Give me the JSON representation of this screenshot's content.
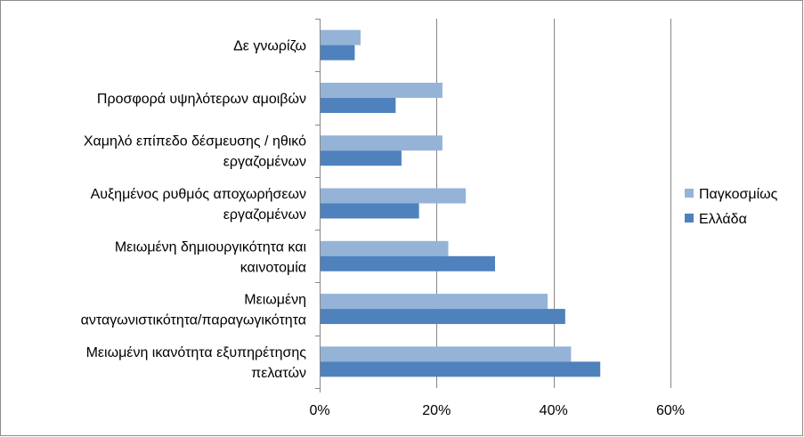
{
  "chart_data": {
    "type": "bar",
    "orientation": "horizontal",
    "categories": [
      [
        "Δε γνωρίζω"
      ],
      [
        "Προσφορά υψηλότερων αμοιβών"
      ],
      [
        "Χαμηλό επίπεδο δέσμευσης / ηθικό",
        "εργαζομένων"
      ],
      [
        "Αυξημένος ρυθμός αποχωρήσεων",
        "εργαζομένων"
      ],
      [
        "Μειωμένη δημιουργικότητα και",
        "καινοτομία"
      ],
      [
        "Μειωμένη",
        "ανταγωνιστικότητα/παραγωγικότητα"
      ],
      [
        "Μειωμένη ικανότητα εξυπηρέτησης",
        "πελατών"
      ]
    ],
    "series": [
      {
        "name": "Παγκοσμίως",
        "color": "#95b3d7",
        "values": [
          7,
          21,
          21,
          25,
          22,
          39,
          43
        ]
      },
      {
        "name": "Ελλάδα",
        "color": "#4f81bd",
        "values": [
          6,
          13,
          14,
          17,
          30,
          42,
          48
        ]
      }
    ],
    "xlim": [
      0,
      60
    ],
    "xticks": [
      0,
      20,
      40,
      60
    ],
    "xtick_labels": [
      "0%",
      "20%",
      "40%",
      "60%"
    ],
    "grid": true,
    "legend_position": "right"
  }
}
